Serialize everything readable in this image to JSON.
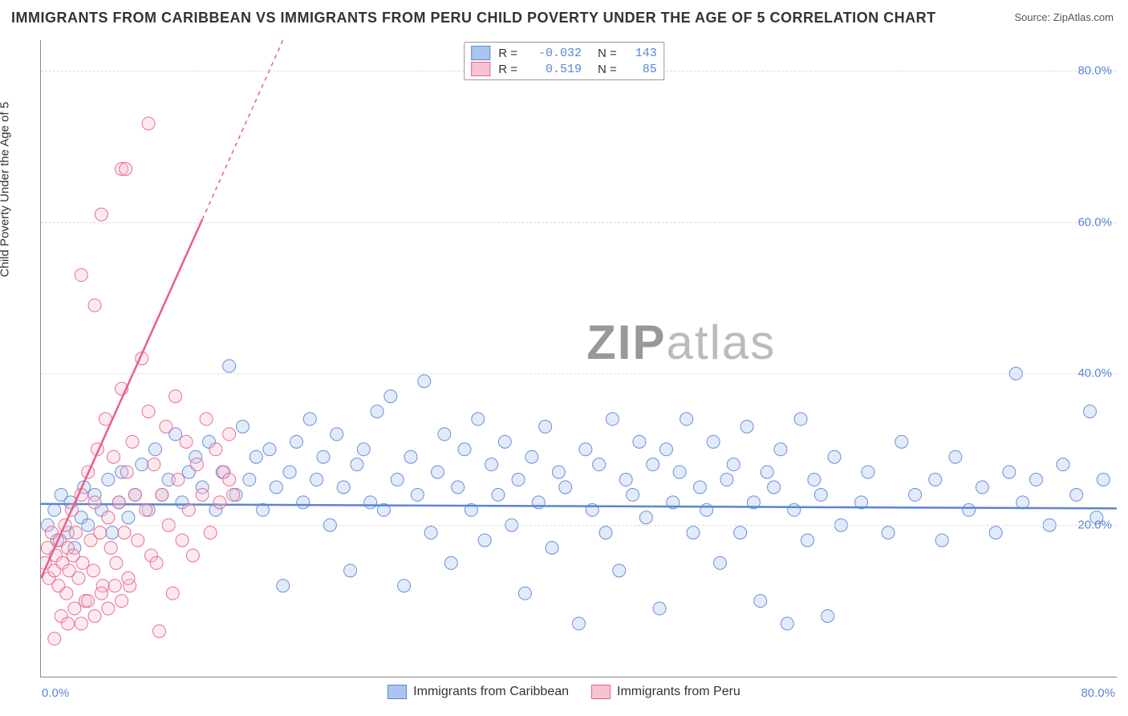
{
  "title": "IMMIGRANTS FROM CARIBBEAN VS IMMIGRANTS FROM PERU CHILD POVERTY UNDER THE AGE OF 5 CORRELATION CHART",
  "source_label": "Source: ",
  "source_name": "ZipAtlas.com",
  "ylabel": "Child Poverty Under the Age of 5",
  "watermark_a": "ZIP",
  "watermark_b": "atlas",
  "chart": {
    "type": "scatter",
    "xlim": [
      0,
      80
    ],
    "ylim": [
      0,
      84
    ],
    "xtick_labels": [
      "0.0%",
      "80.0%"
    ],
    "ytick_labels": [
      "20.0%",
      "40.0%",
      "60.0%",
      "80.0%"
    ],
    "yticks": [
      20,
      40,
      60,
      80
    ],
    "grid_color": "#dddddd",
    "axis_color": "#888888",
    "background_color": "#ffffff",
    "tick_color": "#5b84d7",
    "marker_radius": 8,
    "marker_fill_opacity": 0.35,
    "line_width": 2.5
  },
  "series": [
    {
      "name": "Immigrants from Caribbean",
      "color_fill": "#a9c7ee",
      "color_stroke": "#5b84d7",
      "R": "-0.032",
      "N": "143",
      "trend": {
        "x1": 0,
        "y1": 22.8,
        "x2": 80,
        "y2": 22.2
      },
      "points": [
        [
          0.5,
          20
        ],
        [
          1,
          22
        ],
        [
          1.2,
          18
        ],
        [
          1.5,
          24
        ],
        [
          2,
          19
        ],
        [
          2.2,
          23
        ],
        [
          2.5,
          17
        ],
        [
          3,
          21
        ],
        [
          3.2,
          25
        ],
        [
          3.5,
          20
        ],
        [
          4,
          24
        ],
        [
          4.5,
          22
        ],
        [
          5,
          26
        ],
        [
          5.3,
          19
        ],
        [
          5.8,
          23
        ],
        [
          6,
          27
        ],
        [
          6.5,
          21
        ],
        [
          7,
          24
        ],
        [
          7.5,
          28
        ],
        [
          8,
          22
        ],
        [
          8.5,
          30
        ],
        [
          9,
          24
        ],
        [
          9.5,
          26
        ],
        [
          10,
          32
        ],
        [
          10.5,
          23
        ],
        [
          11,
          27
        ],
        [
          11.5,
          29
        ],
        [
          12,
          25
        ],
        [
          12.5,
          31
        ],
        [
          13,
          22
        ],
        [
          13.5,
          27
        ],
        [
          14,
          41
        ],
        [
          14.5,
          24
        ],
        [
          15,
          33
        ],
        [
          15.5,
          26
        ],
        [
          16,
          29
        ],
        [
          16.5,
          22
        ],
        [
          17,
          30
        ],
        [
          17.5,
          25
        ],
        [
          18,
          12
        ],
        [
          18.5,
          27
        ],
        [
          19,
          31
        ],
        [
          19.5,
          23
        ],
        [
          20,
          34
        ],
        [
          20.5,
          26
        ],
        [
          21,
          29
        ],
        [
          21.5,
          20
        ],
        [
          22,
          32
        ],
        [
          22.5,
          25
        ],
        [
          23,
          14
        ],
        [
          23.5,
          28
        ],
        [
          24,
          30
        ],
        [
          24.5,
          23
        ],
        [
          25,
          35
        ],
        [
          25.5,
          22
        ],
        [
          26,
          37
        ],
        [
          26.5,
          26
        ],
        [
          27,
          12
        ],
        [
          27.5,
          29
        ],
        [
          28,
          24
        ],
        [
          28.5,
          39
        ],
        [
          29,
          19
        ],
        [
          29.5,
          27
        ],
        [
          30,
          32
        ],
        [
          30.5,
          15
        ],
        [
          31,
          25
        ],
        [
          31.5,
          30
        ],
        [
          32,
          22
        ],
        [
          32.5,
          34
        ],
        [
          33,
          18
        ],
        [
          33.5,
          28
        ],
        [
          34,
          24
        ],
        [
          34.5,
          31
        ],
        [
          35,
          20
        ],
        [
          35.5,
          26
        ],
        [
          36,
          11
        ],
        [
          36.5,
          29
        ],
        [
          37,
          23
        ],
        [
          37.5,
          33
        ],
        [
          38,
          17
        ],
        [
          38.5,
          27
        ],
        [
          39,
          25
        ],
        [
          40,
          7
        ],
        [
          40.5,
          30
        ],
        [
          41,
          22
        ],
        [
          41.5,
          28
        ],
        [
          42,
          19
        ],
        [
          42.5,
          34
        ],
        [
          43,
          14
        ],
        [
          43.5,
          26
        ],
        [
          44,
          24
        ],
        [
          44.5,
          31
        ],
        [
          45,
          21
        ],
        [
          45.5,
          28
        ],
        [
          46,
          9
        ],
        [
          46.5,
          30
        ],
        [
          47,
          23
        ],
        [
          47.5,
          27
        ],
        [
          48,
          34
        ],
        [
          48.5,
          19
        ],
        [
          49,
          25
        ],
        [
          49.5,
          22
        ],
        [
          50,
          31
        ],
        [
          50.5,
          15
        ],
        [
          51,
          26
        ],
        [
          51.5,
          28
        ],
        [
          52,
          19
        ],
        [
          52.5,
          33
        ],
        [
          53,
          23
        ],
        [
          53.5,
          10
        ],
        [
          54,
          27
        ],
        [
          54.5,
          25
        ],
        [
          55,
          30
        ],
        [
          55.5,
          7
        ],
        [
          56,
          22
        ],
        [
          56.5,
          34
        ],
        [
          57,
          18
        ],
        [
          57.5,
          26
        ],
        [
          58,
          24
        ],
        [
          58.5,
          8
        ],
        [
          59,
          29
        ],
        [
          59.5,
          20
        ],
        [
          61,
          23
        ],
        [
          61.5,
          27
        ],
        [
          63,
          19
        ],
        [
          64,
          31
        ],
        [
          65,
          24
        ],
        [
          66.5,
          26
        ],
        [
          67,
          18
        ],
        [
          68,
          29
        ],
        [
          69,
          22
        ],
        [
          70,
          25
        ],
        [
          71,
          19
        ],
        [
          72,
          27
        ],
        [
          72.5,
          40
        ],
        [
          73,
          23
        ],
        [
          74,
          26
        ],
        [
          75,
          20
        ],
        [
          76,
          28
        ],
        [
          77,
          24
        ],
        [
          78,
          35
        ],
        [
          78.5,
          21
        ],
        [
          79,
          26
        ]
      ]
    },
    {
      "name": "Immigrants from Peru",
      "color_fill": "#f6c4d1",
      "color_stroke": "#ea5e89",
      "R": "0.519",
      "N": "85",
      "trend": {
        "x1": 0,
        "y1": 13,
        "x2": 18,
        "y2": 84
      },
      "trend_solid_until_x": 12,
      "points": [
        [
          0.3,
          15
        ],
        [
          0.5,
          17
        ],
        [
          0.6,
          13
        ],
        [
          0.8,
          19
        ],
        [
          1,
          14
        ],
        [
          1.1,
          16
        ],
        [
          1.3,
          12
        ],
        [
          1.4,
          18
        ],
        [
          1.6,
          15
        ],
        [
          1.8,
          20
        ],
        [
          1.9,
          11
        ],
        [
          2,
          17
        ],
        [
          2.1,
          14
        ],
        [
          2.3,
          22
        ],
        [
          2.4,
          16
        ],
        [
          2.6,
          19
        ],
        [
          2.8,
          13
        ],
        [
          3,
          24
        ],
        [
          3.1,
          15
        ],
        [
          3.3,
          10
        ],
        [
          3.5,
          27
        ],
        [
          3.7,
          18
        ],
        [
          3.9,
          14
        ],
        [
          4,
          23
        ],
        [
          4.2,
          30
        ],
        [
          4.4,
          19
        ],
        [
          4.6,
          12
        ],
        [
          4.8,
          34
        ],
        [
          5,
          21
        ],
        [
          5.2,
          17
        ],
        [
          5.4,
          29
        ],
        [
          5.6,
          15
        ],
        [
          5.8,
          23
        ],
        [
          6,
          38
        ],
        [
          6.2,
          19
        ],
        [
          6.4,
          27
        ],
        [
          6.6,
          12
        ],
        [
          6.8,
          31
        ],
        [
          7,
          24
        ],
        [
          7.2,
          18
        ],
        [
          7.5,
          42
        ],
        [
          7.8,
          22
        ],
        [
          8,
          35
        ],
        [
          8.2,
          16
        ],
        [
          8.4,
          28
        ],
        [
          8.6,
          15
        ],
        [
          8.8,
          6
        ],
        [
          9,
          24
        ],
        [
          9.3,
          33
        ],
        [
          9.5,
          20
        ],
        [
          9.8,
          11
        ],
        [
          10,
          37
        ],
        [
          10.2,
          26
        ],
        [
          10.5,
          18
        ],
        [
          10.8,
          31
        ],
        [
          11,
          22
        ],
        [
          11.3,
          16
        ],
        [
          11.6,
          28
        ],
        [
          12,
          24
        ],
        [
          12.3,
          34
        ],
        [
          12.6,
          19
        ],
        [
          13,
          30
        ],
        [
          13.3,
          23
        ],
        [
          13.6,
          27
        ],
        [
          14,
          32
        ],
        [
          14,
          26
        ],
        [
          14.3,
          24
        ],
        [
          3,
          53
        ],
        [
          4,
          49
        ],
        [
          6,
          67
        ],
        [
          6.3,
          67
        ],
        [
          8,
          73
        ],
        [
          4.5,
          61
        ],
        [
          1,
          5
        ],
        [
          1.5,
          8
        ],
        [
          2,
          7
        ],
        [
          2.5,
          9
        ],
        [
          3,
          7
        ],
        [
          3.5,
          10
        ],
        [
          4,
          8
        ],
        [
          4.5,
          11
        ],
        [
          5,
          9
        ],
        [
          5.5,
          12
        ],
        [
          6,
          10
        ],
        [
          6.5,
          13
        ]
      ]
    }
  ],
  "legend_labels": {
    "R_label": "R =",
    "N_label": "N ="
  }
}
